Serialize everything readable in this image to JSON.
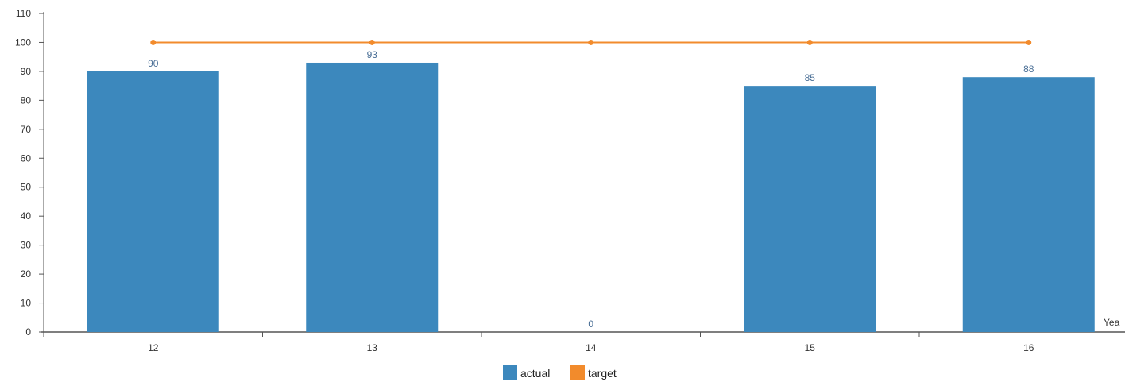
{
  "chart_data": {
    "type": "bar",
    "categories": [
      "12",
      "13",
      "14",
      "15",
      "16"
    ],
    "series": [
      {
        "name": "actual",
        "kind": "bar",
        "values": [
          90,
          93,
          0,
          85,
          88
        ],
        "color": "#3c88bd"
      },
      {
        "name": "target",
        "kind": "line",
        "values": [
          100,
          100,
          100,
          100,
          100
        ],
        "color": "#f28b2c"
      }
    ],
    "data_labels": [
      "90",
      "93",
      "0",
      "85",
      "88"
    ],
    "title": "",
    "xlabel": "Yea",
    "ylabel": "",
    "ylim": [
      0,
      110
    ],
    "yticks": [
      0,
      10,
      20,
      30,
      40,
      50,
      60,
      70,
      80,
      90,
      100,
      110
    ],
    "grid": false,
    "legend": {
      "position": "bottom-center",
      "items": [
        {
          "label": "actual",
          "color": "#3c88bd"
        },
        {
          "label": "target",
          "color": "#f28b2c"
        }
      ]
    }
  }
}
